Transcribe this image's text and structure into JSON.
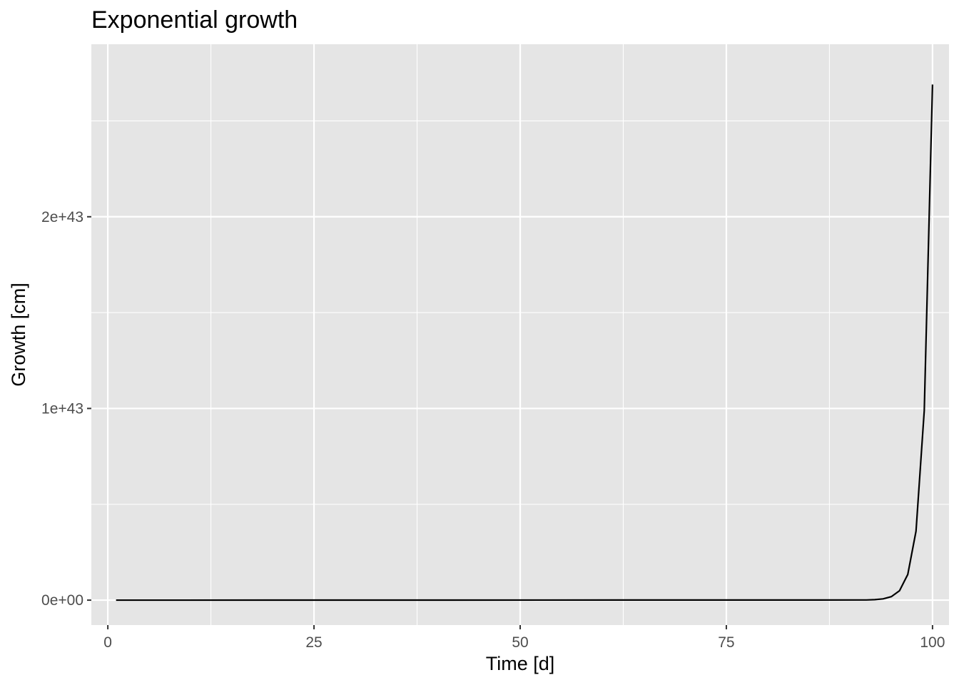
{
  "chart_data": {
    "type": "line",
    "title": "Exponential growth",
    "xlabel": "Time [d]",
    "ylabel": "Growth [cm]",
    "xlim": [
      -2,
      102
    ],
    "ylim": [
      -1.3e+42,
      2.9e+43
    ],
    "x_ticks": [
      0,
      25,
      50,
      75,
      100
    ],
    "x_tick_labels": [
      "0",
      "25",
      "50",
      "75",
      "100"
    ],
    "x_minor_ticks": [
      12.5,
      37.5,
      62.5,
      87.5
    ],
    "y_ticks": [
      0,
      1e+43,
      2e+43
    ],
    "y_tick_labels": [
      "0e+00",
      "1e+43",
      "2e+43"
    ],
    "y_minor_ticks": [
      5e+42,
      1.5e+43,
      2.5e+43
    ],
    "grid": true,
    "legend": "none",
    "series": [
      {
        "color": "#000000",
        "x": [
          1,
          92,
          93,
          94,
          95,
          96,
          97,
          98,
          99,
          100
        ],
        "y": [
          2.72,
          9e+39,
          2.5e+40,
          6.6e+40,
          1.8e+41,
          4.9e+41,
          1.34e+42,
          3.6e+42,
          9.9e+42,
          2.69e+43
        ]
      }
    ],
    "colors": {
      "panel": "#e5e5e5",
      "grid": "#ffffff",
      "tick": "#333333",
      "tick_label": "#4d4d4d"
    }
  }
}
